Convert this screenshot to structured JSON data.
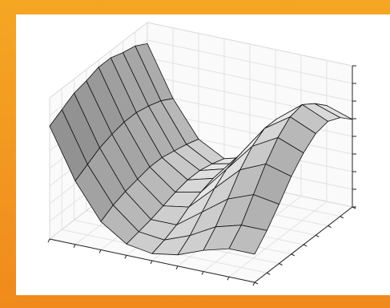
{
  "chart_data": {
    "type": "surface",
    "z": [
      [
        0.8,
        0.45,
        0.2,
        0.08,
        0.05,
        0.08,
        0.15,
        0.2,
        0.2
      ],
      [
        0.85,
        0.5,
        0.25,
        0.1,
        0.08,
        0.15,
        0.25,
        0.3,
        0.3
      ],
      [
        0.9,
        0.55,
        0.28,
        0.12,
        0.12,
        0.25,
        0.38,
        0.45,
        0.42
      ],
      [
        0.92,
        0.58,
        0.3,
        0.15,
        0.18,
        0.35,
        0.52,
        0.6,
        0.55
      ],
      [
        0.95,
        0.6,
        0.32,
        0.18,
        0.22,
        0.42,
        0.62,
        0.72,
        0.65
      ],
      [
        0.95,
        0.6,
        0.32,
        0.2,
        0.25,
        0.45,
        0.68,
        0.8,
        0.72
      ],
      [
        0.92,
        0.58,
        0.3,
        0.2,
        0.25,
        0.45,
        0.68,
        0.82,
        0.74
      ],
      [
        0.9,
        0.55,
        0.28,
        0.18,
        0.22,
        0.4,
        0.62,
        0.76,
        0.7
      ],
      [
        0.85,
        0.5,
        0.25,
        0.15,
        0.2,
        0.35,
        0.55,
        0.68,
        0.62
      ]
    ]
  }
}
